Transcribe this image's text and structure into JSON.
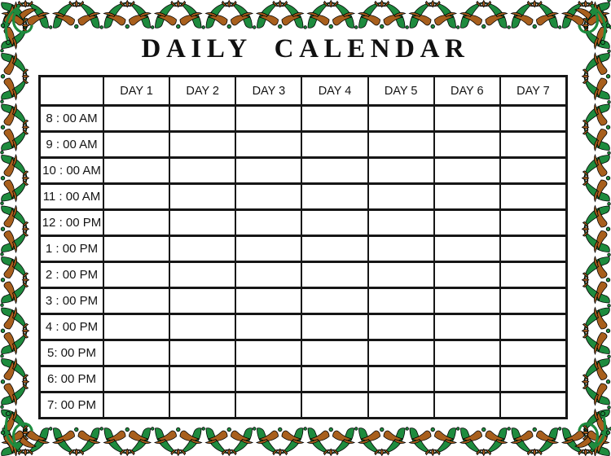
{
  "title": "DAILY CALENDAR",
  "table": {
    "corner_label": "",
    "day_headers": [
      "DAY 1",
      "DAY 2",
      "DAY 3",
      "DAY 4",
      "DAY 5",
      "DAY 6",
      "DAY 7"
    ],
    "time_rows": [
      "8 : 00 AM",
      "9 : 00 AM",
      "10 : 00 AM",
      "11 : 00 AM",
      "12 : 00 PM",
      "1 : 00 PM",
      "2 : 00 PM",
      "3 : 00 PM",
      "4 : 00 PM",
      "5: 00 PM",
      "6: 00 PM",
      "7: 00 PM"
    ]
  },
  "border": {
    "motif": "vine-scroll-border"
  },
  "colors": {
    "vine_green": "#1e8b3e",
    "vine_brown": "#a85f1d",
    "grid_black": "#161616",
    "background": "#ffffff",
    "text_black": "#111111"
  }
}
